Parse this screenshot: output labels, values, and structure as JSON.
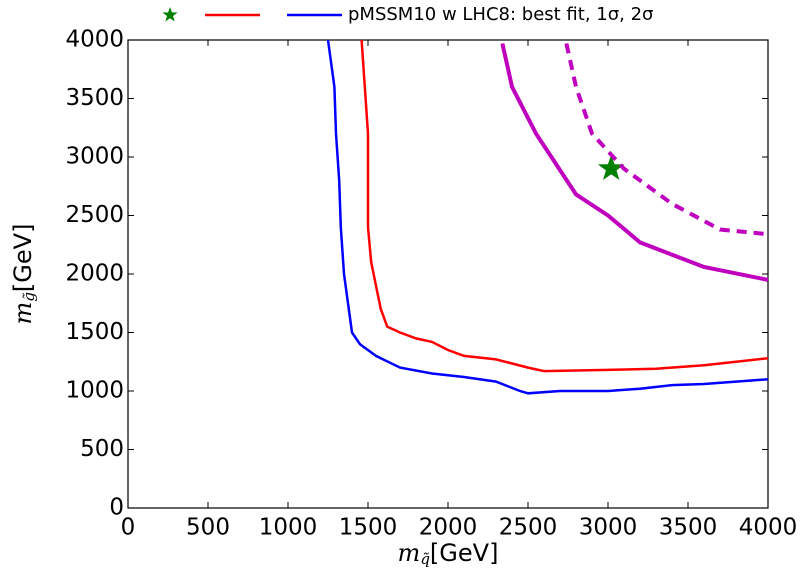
{
  "chart_data": {
    "type": "line",
    "legend_label": "pMSSM10 w LHC8: best fit, 1σ, 2σ",
    "xlabel": {
      "symbol": "m",
      "subscript": "q̃",
      "unit": "[GeV]"
    },
    "ylabel": {
      "symbol": "m",
      "subscript": "g̃",
      "unit": "[GeV]"
    },
    "xlim": [
      0,
      4000
    ],
    "ylim": [
      0,
      4000
    ],
    "xticks": [
      0,
      500,
      1000,
      1500,
      2000,
      2500,
      3000,
      3500,
      4000
    ],
    "yticks": [
      0,
      500,
      1000,
      1500,
      2000,
      2500,
      3000,
      3500,
      4000
    ],
    "series": [
      {
        "color": "#008000",
        "marker": "star",
        "legend": true,
        "x": [
          3020
        ],
        "values": [
          2900
        ]
      },
      {
        "color": "#ff0000",
        "style": "solid",
        "legend": true,
        "x": [
          1460,
          1480,
          1500,
          1500,
          1500,
          1520,
          1550,
          1580,
          1620,
          1700,
          1800,
          1900,
          2000,
          2100,
          2300,
          2500,
          2600,
          3000,
          3300,
          3600,
          3800,
          4000
        ],
        "values": [
          4000,
          3600,
          3200,
          2800,
          2400,
          2100,
          1900,
          1700,
          1550,
          1500,
          1450,
          1420,
          1350,
          1300,
          1270,
          1200,
          1170,
          1180,
          1190,
          1220,
          1250,
          1280
        ]
      },
      {
        "color": "#0000ff",
        "style": "solid",
        "legend": true,
        "x": [
          1250,
          1290,
          1300,
          1320,
          1330,
          1350,
          1380,
          1400,
          1450,
          1550,
          1700,
          1900,
          2100,
          2300,
          2450,
          2500,
          2700,
          3000,
          3200,
          3400,
          3600,
          3800,
          4000
        ],
        "values": [
          4000,
          3600,
          3200,
          2800,
          2400,
          2000,
          1700,
          1500,
          1400,
          1300,
          1200,
          1150,
          1120,
          1080,
          1000,
          980,
          1000,
          1000,
          1020,
          1050,
          1060,
          1080,
          1100
        ]
      },
      {
        "color": "#bf00bf",
        "style": "solid",
        "legend": false,
        "x": [
          2340,
          2400,
          2550,
          2800,
          3000,
          3200,
          3600,
          4000
        ],
        "values": [
          3970,
          3600,
          3200,
          2680,
          2500,
          2270,
          2060,
          1950
        ]
      },
      {
        "color": "#bf00bf",
        "style": "dashed",
        "legend": false,
        "x": [
          2740,
          2800,
          2900,
          3100,
          3400,
          3700,
          4000
        ],
        "values": [
          3970,
          3600,
          3200,
          2900,
          2600,
          2380,
          2340
        ]
      }
    ]
  }
}
